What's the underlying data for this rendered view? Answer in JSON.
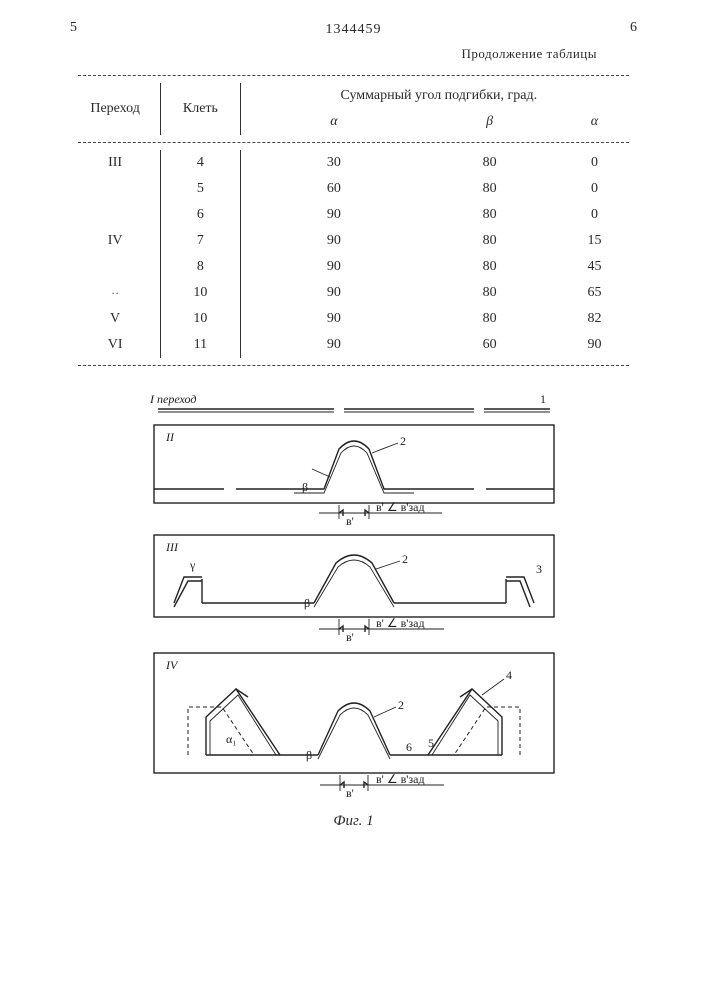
{
  "page": {
    "left_num": "5",
    "right_num": "6",
    "patent": "1344459"
  },
  "table": {
    "caption": "Продолжение таблицы",
    "head": {
      "col1": "Переход",
      "col2": "Клеть",
      "sum": "Суммарный угол подгибки, град.",
      "sub_a1": "α",
      "sub_b": "β",
      "sub_a2": "α"
    },
    "rows": [
      {
        "p": "III",
        "k": "4",
        "a1": "30",
        "b": "80",
        "a2": "0"
      },
      {
        "p": "",
        "k": "5",
        "a1": "60",
        "b": "80",
        "a2": "0"
      },
      {
        "p": "",
        "k": "6",
        "a1": "90",
        "b": "80",
        "a2": "0"
      },
      {
        "p": "IV",
        "k": "7",
        "a1": "90",
        "b": "80",
        "a2": "15"
      },
      {
        "p": "",
        "k": "8",
        "a1": "90",
        "b": "80",
        "a2": "45"
      },
      {
        "p": "··",
        "k": "10",
        "a1": "90",
        "b": "80",
        "a2": "65"
      },
      {
        "p": "V",
        "k": "10",
        "a1": "90",
        "b": "80",
        "a2": "82"
      },
      {
        "p": "VI",
        "k": "11",
        "a1": "90",
        "b": "60",
        "a2": "90"
      }
    ]
  },
  "figure": {
    "caption": "Фиг. 1",
    "stage1_label": "I переход",
    "stage2_label": "II",
    "stage3_label": "III",
    "stage4_label": "IV",
    "dim_text": "в' ∠ в'зад",
    "dim_text_short": "в'",
    "callouts": {
      "c1": "1",
      "c2": "2",
      "c3": "3",
      "c4": "4",
      "c5": "5",
      "c6": "6",
      "gamma": "γ",
      "beta": "β",
      "alpha1": "α₁"
    },
    "colors": {
      "stroke": "#222222",
      "bg": "#ffffff"
    }
  }
}
